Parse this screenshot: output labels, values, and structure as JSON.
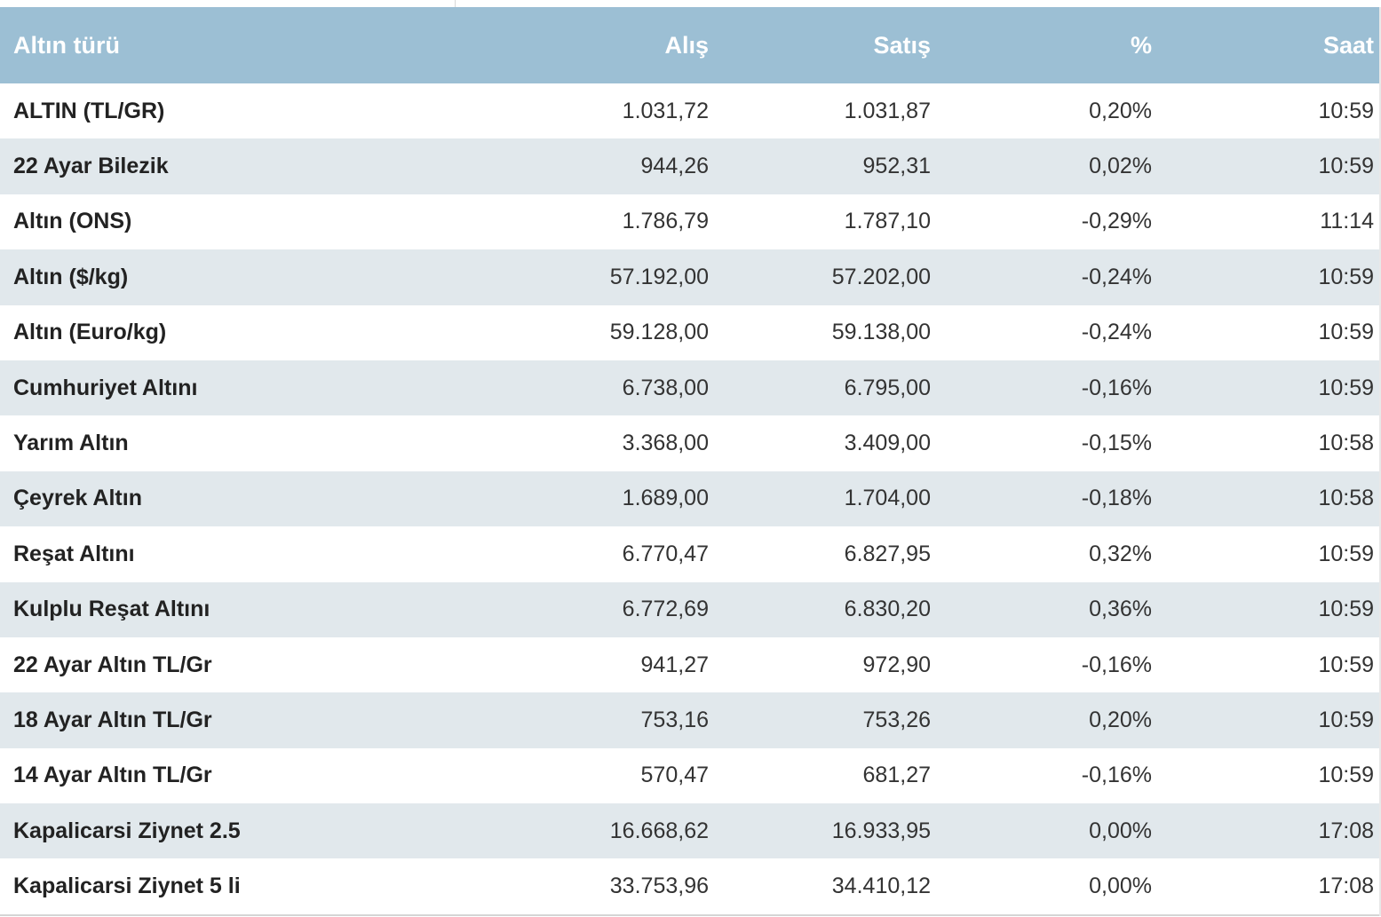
{
  "table": {
    "headers": {
      "name": "Altın türü",
      "buy": "Alış",
      "sell": "Satış",
      "change": "%",
      "time": "Saat"
    },
    "rows": [
      {
        "name": "ALTIN (TL/GR)",
        "buy": "1.031,72",
        "sell": "1.031,87",
        "change": "0,20%",
        "time": "10:59"
      },
      {
        "name": "22 Ayar Bilezik",
        "buy": "944,26",
        "sell": "952,31",
        "change": "0,02%",
        "time": "10:59"
      },
      {
        "name": "Altın (ONS)",
        "buy": "1.786,79",
        "sell": "1.787,10",
        "change": "-0,29%",
        "time": "11:14"
      },
      {
        "name": "Altın ($/kg)",
        "buy": "57.192,00",
        "sell": "57.202,00",
        "change": "-0,24%",
        "time": "10:59"
      },
      {
        "name": "Altın (Euro/kg)",
        "buy": "59.128,00",
        "sell": "59.138,00",
        "change": "-0,24%",
        "time": "10:59"
      },
      {
        "name": "Cumhuriyet Altını",
        "buy": "6.738,00",
        "sell": "6.795,00",
        "change": "-0,16%",
        "time": "10:59"
      },
      {
        "name": "Yarım Altın",
        "buy": "3.368,00",
        "sell": "3.409,00",
        "change": "-0,15%",
        "time": "10:58"
      },
      {
        "name": "Çeyrek Altın",
        "buy": "1.689,00",
        "sell": "1.704,00",
        "change": "-0,18%",
        "time": "10:58"
      },
      {
        "name": "Reşat Altını",
        "buy": "6.770,47",
        "sell": "6.827,95",
        "change": "0,32%",
        "time": "10:59"
      },
      {
        "name": "Kulplu Reşat Altını",
        "buy": "6.772,69",
        "sell": "6.830,20",
        "change": "0,36%",
        "time": "10:59"
      },
      {
        "name": "22 Ayar Altın TL/Gr",
        "buy": "941,27",
        "sell": "972,90",
        "change": "-0,16%",
        "time": "10:59"
      },
      {
        "name": "18 Ayar Altın TL/Gr",
        "buy": "753,16",
        "sell": "753,26",
        "change": "0,20%",
        "time": "10:59"
      },
      {
        "name": "14 Ayar Altın TL/Gr",
        "buy": "570,47",
        "sell": "681,27",
        "change": "-0,16%",
        "time": "10:59"
      },
      {
        "name": "Kapalicarsi Ziynet 2.5",
        "buy": "16.668,62",
        "sell": "16.933,95",
        "change": "0,00%",
        "time": "17:08"
      },
      {
        "name": "Kapalicarsi Ziynet 5 li",
        "buy": "33.753,96",
        "sell": "34.410,12",
        "change": "0,00%",
        "time": "17:08"
      }
    ]
  },
  "colors": {
    "header_bg": "#9cbfd4",
    "header_text": "#ffffff",
    "row_alt_bg": "#e1e8ec",
    "row_bg": "#ffffff",
    "text": "#333333"
  }
}
